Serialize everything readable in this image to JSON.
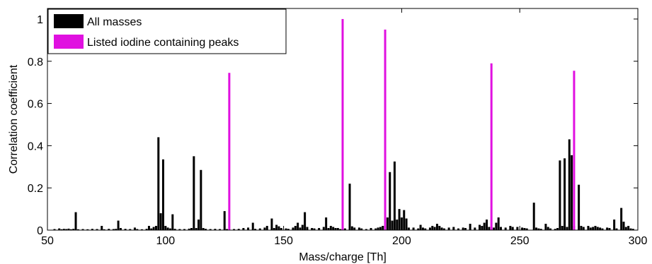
{
  "chart_data": {
    "type": "bar",
    "xlabel": "Mass/charge [Th]",
    "ylabel": "Correlation coefficient",
    "xlim": [
      50,
      300
    ],
    "ylim": [
      0,
      1.05
    ],
    "xticks": [
      "50",
      "100",
      "150",
      "200",
      "250",
      "300"
    ],
    "yticks": [
      "0",
      "0.2",
      "0.4",
      "0.6",
      "0.8",
      "1"
    ],
    "grid": false,
    "legend_position": "top-left",
    "series": [
      {
        "name": "All masses",
        "color": "#000000",
        "points": [
          [
            53,
            0.005
          ],
          [
            55,
            0.008
          ],
          [
            56,
            0.004
          ],
          [
            57,
            0.006
          ],
          [
            58,
            0.005
          ],
          [
            59,
            0.007
          ],
          [
            60,
            0.004
          ],
          [
            61,
            0.006
          ],
          [
            62,
            0.085
          ],
          [
            63,
            0.004
          ],
          [
            65,
            0.005
          ],
          [
            67,
            0.004
          ],
          [
            69,
            0.006
          ],
          [
            71,
            0.005
          ],
          [
            73,
            0.02
          ],
          [
            74,
            0.004
          ],
          [
            76,
            0.006
          ],
          [
            78,
            0.005
          ],
          [
            79,
            0.006
          ],
          [
            80,
            0.045
          ],
          [
            81,
            0.01
          ],
          [
            83,
            0.006
          ],
          [
            85,
            0.005
          ],
          [
            87,
            0.012
          ],
          [
            88,
            0.005
          ],
          [
            90,
            0.004
          ],
          [
            92,
            0.006
          ],
          [
            93,
            0.02
          ],
          [
            94,
            0.008
          ],
          [
            95,
            0.015
          ],
          [
            96,
            0.02
          ],
          [
            97,
            0.44
          ],
          [
            98,
            0.08
          ],
          [
            99,
            0.335
          ],
          [
            100,
            0.02
          ],
          [
            101,
            0.012
          ],
          [
            102,
            0.008
          ],
          [
            103,
            0.075
          ],
          [
            104,
            0.006
          ],
          [
            106,
            0.005
          ],
          [
            108,
            0.005
          ],
          [
            110,
            0.007
          ],
          [
            111,
            0.01
          ],
          [
            112,
            0.35
          ],
          [
            113,
            0.01
          ],
          [
            114,
            0.05
          ],
          [
            115,
            0.285
          ],
          [
            116,
            0.01
          ],
          [
            117,
            0.006
          ],
          [
            119,
            0.005
          ],
          [
            121,
            0.006
          ],
          [
            123,
            0.005
          ],
          [
            125,
            0.09
          ],
          [
            126,
            0.005
          ],
          [
            129,
            0.005
          ],
          [
            131,
            0.006
          ],
          [
            133,
            0.01
          ],
          [
            135,
            0.012
          ],
          [
            137,
            0.035
          ],
          [
            138,
            0.006
          ],
          [
            140,
            0.008
          ],
          [
            142,
            0.012
          ],
          [
            143,
            0.02
          ],
          [
            145,
            0.055
          ],
          [
            146,
            0.01
          ],
          [
            147,
            0.025
          ],
          [
            148,
            0.018
          ],
          [
            149,
            0.01
          ],
          [
            151,
            0.008
          ],
          [
            152,
            0.006
          ],
          [
            154,
            0.012
          ],
          [
            155,
            0.02
          ],
          [
            156,
            0.035
          ],
          [
            157,
            0.012
          ],
          [
            158,
            0.025
          ],
          [
            159,
            0.085
          ],
          [
            160,
            0.015
          ],
          [
            162,
            0.01
          ],
          [
            163,
            0.008
          ],
          [
            165,
            0.01
          ],
          [
            167,
            0.015
          ],
          [
            168,
            0.06
          ],
          [
            169,
            0.01
          ],
          [
            170,
            0.02
          ],
          [
            171,
            0.015
          ],
          [
            172,
            0.01
          ],
          [
            173,
            0.01
          ],
          [
            174,
            0.005
          ],
          [
            176,
            0.008
          ],
          [
            178,
            0.22
          ],
          [
            179,
            0.018
          ],
          [
            180,
            0.012
          ],
          [
            182,
            0.012
          ],
          [
            183,
            0.008
          ],
          [
            185,
            0.005
          ],
          [
            187,
            0.01
          ],
          [
            189,
            0.008
          ],
          [
            190,
            0.012
          ],
          [
            191,
            0.015
          ],
          [
            192,
            0.02
          ],
          [
            194,
            0.06
          ],
          [
            195,
            0.275
          ],
          [
            196,
            0.045
          ],
          [
            197,
            0.325
          ],
          [
            198,
            0.05
          ],
          [
            199,
            0.1
          ],
          [
            200,
            0.06
          ],
          [
            201,
            0.095
          ],
          [
            202,
            0.055
          ],
          [
            203,
            0.012
          ],
          [
            205,
            0.012
          ],
          [
            207,
            0.008
          ],
          [
            208,
            0.025
          ],
          [
            209,
            0.012
          ],
          [
            210,
            0.008
          ],
          [
            212,
            0.012
          ],
          [
            213,
            0.02
          ],
          [
            214,
            0.015
          ],
          [
            215,
            0.03
          ],
          [
            216,
            0.02
          ],
          [
            217,
            0.012
          ],
          [
            218,
            0.008
          ],
          [
            220,
            0.012
          ],
          [
            222,
            0.015
          ],
          [
            224,
            0.008
          ],
          [
            226,
            0.012
          ],
          [
            227,
            0.01
          ],
          [
            229,
            0.03
          ],
          [
            231,
            0.012
          ],
          [
            233,
            0.025
          ],
          [
            234,
            0.02
          ],
          [
            235,
            0.035
          ],
          [
            236,
            0.05
          ],
          [
            237,
            0.015
          ],
          [
            239,
            0.012
          ],
          [
            240,
            0.035
          ],
          [
            241,
            0.06
          ],
          [
            242,
            0.015
          ],
          [
            244,
            0.012
          ],
          [
            246,
            0.02
          ],
          [
            247,
            0.015
          ],
          [
            249,
            0.015
          ],
          [
            251,
            0.012
          ],
          [
            252,
            0.01
          ],
          [
            253,
            0.008
          ],
          [
            256,
            0.13
          ],
          [
            257,
            0.012
          ],
          [
            258,
            0.008
          ],
          [
            259,
            0.006
          ],
          [
            261,
            0.03
          ],
          [
            262,
            0.015
          ],
          [
            263,
            0.008
          ],
          [
            265,
            0.006
          ],
          [
            266,
            0.01
          ],
          [
            267,
            0.33
          ],
          [
            268,
            0.02
          ],
          [
            269,
            0.34
          ],
          [
            270,
            0.015
          ],
          [
            271,
            0.43
          ],
          [
            272,
            0.355
          ],
          [
            273,
            0.02
          ],
          [
            275,
            0.215
          ],
          [
            276,
            0.02
          ],
          [
            277,
            0.015
          ],
          [
            279,
            0.02
          ],
          [
            280,
            0.012
          ],
          [
            281,
            0.015
          ],
          [
            282,
            0.02
          ],
          [
            283,
            0.015
          ],
          [
            284,
            0.012
          ],
          [
            285,
            0.008
          ],
          [
            287,
            0.012
          ],
          [
            288,
            0.01
          ],
          [
            290,
            0.05
          ],
          [
            291,
            0.008
          ],
          [
            293,
            0.105
          ],
          [
            294,
            0.04
          ],
          [
            295,
            0.015
          ],
          [
            296,
            0.02
          ],
          [
            297,
            0.008
          ],
          [
            298,
            0.006
          ]
        ]
      },
      {
        "name": "Listed iodine containing peaks",
        "color": "#e010e0",
        "points": [
          [
            127,
            0.745
          ],
          [
            175,
            1.0
          ],
          [
            193,
            0.95
          ],
          [
            238,
            0.79
          ],
          [
            273,
            0.755
          ]
        ]
      }
    ]
  }
}
